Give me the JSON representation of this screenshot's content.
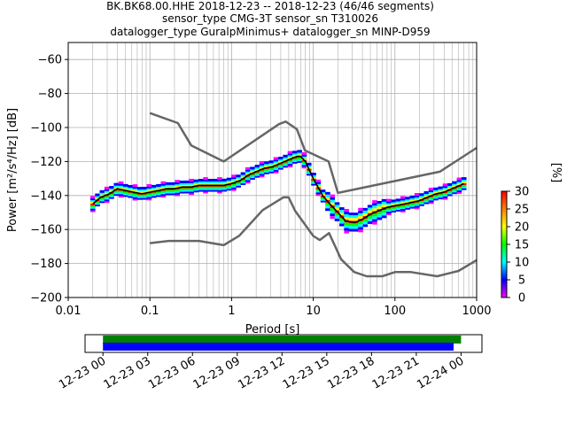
{
  "title": {
    "line1": "BK.BK68.00.HHE   2018-12-23 -- 2018-12-23  (46/46 segments)",
    "line2": "sensor_type CMG-3T sensor_sn T310026",
    "line3": "datalogger_type GuralpMinimus+ datalogger_sn MINP-D959"
  },
  "chart_data": [
    {
      "type": "heatmap",
      "name": "ppsd",
      "xlabel": "Period [s]",
      "ylabel": "Power [m²/s⁴/Hz] [dB]",
      "xscale": "log",
      "xlim": [
        0.01,
        1000
      ],
      "ylim": [
        -200,
        -50
      ],
      "x_ticks": [
        0.01,
        0.1,
        1,
        10,
        100,
        1000
      ],
      "x_tick_labels": [
        "0.01",
        "0.1",
        "1",
        "10",
        "100",
        "1000"
      ],
      "y_ticks": [
        -200,
        -180,
        -160,
        -140,
        -120,
        -100,
        -80,
        -60
      ],
      "y_tick_labels": [
        "−200",
        "−180",
        "−160",
        "−140",
        "−120",
        "−100",
        "−80",
        "−60"
      ],
      "grid": true,
      "colorbar": {
        "label": "[%]",
        "range": [
          0,
          30
        ],
        "ticks": [
          0,
          5,
          10,
          15,
          20,
          25,
          30
        ],
        "tick_labels": [
          "0",
          "5",
          "10",
          "15",
          "20",
          "25",
          "30"
        ],
        "colormap": [
          "#ffffff",
          "#ff00ff",
          "#0000ff",
          "#00ffff",
          "#00ff00",
          "#ffff00",
          "#ff8000",
          "#ff0000"
        ]
      },
      "mode_curve": {
        "color": "#000000",
        "x": [
          0.02,
          0.025,
          0.032,
          0.04,
          0.05,
          0.063,
          0.08,
          0.1,
          0.13,
          0.16,
          0.2,
          0.25,
          0.32,
          0.4,
          0.5,
          0.63,
          0.8,
          1,
          1.3,
          1.6,
          2,
          2.5,
          3.2,
          4,
          5,
          6.3,
          7,
          8,
          10,
          13,
          16,
          20,
          25,
          32,
          40,
          50,
          63,
          80,
          100,
          130,
          160,
          200,
          250,
          320,
          400,
          500,
          630,
          700
        ],
        "y": [
          -145,
          -141,
          -139,
          -136,
          -137,
          -138,
          -139,
          -138,
          -137,
          -136,
          -136,
          -135,
          -135,
          -134,
          -134,
          -134,
          -134,
          -133,
          -131,
          -128,
          -126,
          -124,
          -123,
          -121,
          -119,
          -117,
          -117,
          -120,
          -130,
          -140,
          -145,
          -150,
          -155,
          -156,
          -154,
          -151,
          -149,
          -147,
          -146,
          -145,
          -144,
          -143,
          -141,
          -139,
          -138,
          -136,
          -134,
          -133
        ]
      },
      "nhnm": {
        "color": "#666666",
        "x": [
          0.1,
          0.22,
          0.32,
          0.8,
          3.8,
          4.6,
          6.3,
          7.9,
          15.4,
          20,
          354.8,
          1000
        ],
        "y": [
          -91.5,
          -97.4,
          -110.5,
          -120,
          -98,
          -96.5,
          -101,
          -113.5,
          -120,
          -138.5,
          -126,
          -112
        ]
      },
      "nlnm": {
        "color": "#666666",
        "x": [
          0.1,
          0.17,
          0.4,
          0.8,
          1.24,
          2.4,
          4.3,
          5,
          6,
          10,
          12,
          15.6,
          21.9,
          31.6,
          45,
          70,
          101,
          154,
          328,
          600,
          1000
        ],
        "y": [
          -168,
          -166.7,
          -166.7,
          -169.2,
          -163.7,
          -148.6,
          -141.1,
          -141.1,
          -149,
          -163.8,
          -166.2,
          -162.1,
          -177.5,
          -185,
          -187.5,
          -187.5,
          -185,
          -185,
          -187.5,
          -184.4,
          -178
        ]
      }
    },
    {
      "type": "timeline",
      "name": "data-coverage",
      "x_ticks": [
        "12-23 00",
        "12-23 03",
        "12-23 06",
        "12-23 09",
        "12-23 12",
        "12-23 15",
        "12-23 18",
        "12-23 21",
        "12-24 00"
      ],
      "xlim_hours": [
        -1.2,
        25.4
      ],
      "bars": [
        {
          "label": "green",
          "color": "#008000",
          "start_hour": 0,
          "end_hour": 24.0
        },
        {
          "label": "blue",
          "color": "#0000ff",
          "start_hour": 0,
          "end_hour": 23.5
        }
      ]
    }
  ]
}
